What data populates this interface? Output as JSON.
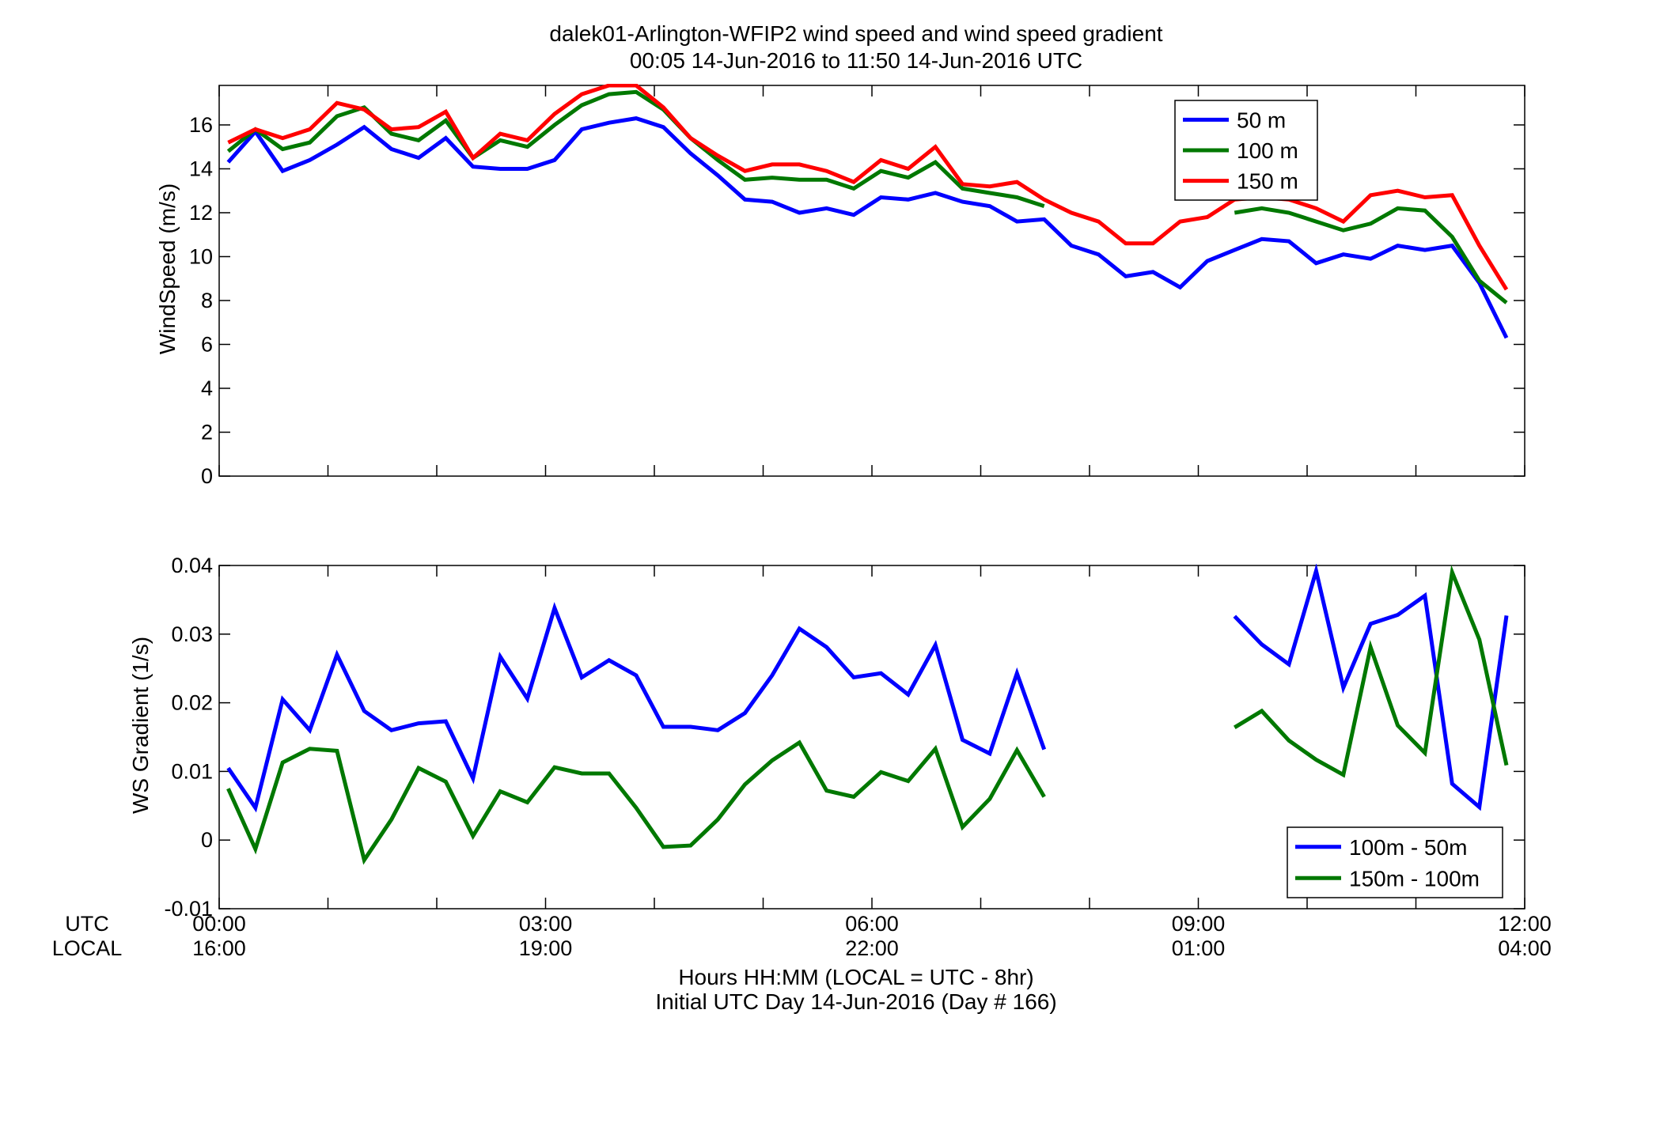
{
  "figure": {
    "title_line1": "dalek01-Arlington-WFIP2  wind speed and wind speed gradient",
    "title_line2": "00:05 14-Jun-2016 to 11:50 14-Jun-2016  UTC",
    "xlabel_line1": "Hours HH:MM  (LOCAL = UTC - 8hr)",
    "xlabel_line2": "Initial UTC Day 14-Jun-2016 (Day # 166)",
    "row_label_utc": "UTC",
    "row_label_local": "LOCAL",
    "x_ticks_utc": [
      "00:00",
      "03:00",
      "06:00",
      "09:00",
      "12:00"
    ],
    "x_ticks_local": [
      "16:00",
      "19:00",
      "22:00",
      "01:00",
      "04:00"
    ]
  },
  "chart_data": [
    {
      "type": "line",
      "ylabel": "WindSpeed (m/s)",
      "xlim": [
        0,
        12
      ],
      "ylim": [
        0,
        17.8
      ],
      "yticks": [
        0,
        2,
        4,
        6,
        8,
        10,
        12,
        14,
        16
      ],
      "grid": false,
      "legend_position": "top-right",
      "series": [
        {
          "name": "50 m",
          "color": "#0000ff",
          "points": [
            [
              0.083,
              14.3
            ],
            [
              0.333,
              15.7
            ],
            [
              0.583,
              13.9
            ],
            [
              0.833,
              14.4
            ],
            [
              1.083,
              15.1
            ],
            [
              1.333,
              15.9
            ],
            [
              1.583,
              14.9
            ],
            [
              1.833,
              14.5
            ],
            [
              2.083,
              15.4
            ],
            [
              2.333,
              14.1
            ],
            [
              2.583,
              14.0
            ],
            [
              2.833,
              14.0
            ],
            [
              3.083,
              14.4
            ],
            [
              3.333,
              15.8
            ],
            [
              3.583,
              16.1
            ],
            [
              3.833,
              16.3
            ],
            [
              4.083,
              15.9
            ],
            [
              4.333,
              14.7
            ],
            [
              4.583,
              13.7
            ],
            [
              4.833,
              12.6
            ],
            [
              5.083,
              12.5
            ],
            [
              5.333,
              12.0
            ],
            [
              5.583,
              12.2
            ],
            [
              5.833,
              11.9
            ],
            [
              6.083,
              12.7
            ],
            [
              6.333,
              12.6
            ],
            [
              6.583,
              12.9
            ],
            [
              6.833,
              12.5
            ],
            [
              7.083,
              12.3
            ],
            [
              7.333,
              11.6
            ],
            [
              7.583,
              11.7
            ],
            [
              7.833,
              10.5
            ],
            [
              8.083,
              10.1
            ],
            [
              8.333,
              9.1
            ],
            [
              8.583,
              9.3
            ],
            [
              8.833,
              8.6
            ],
            [
              9.083,
              9.8
            ],
            [
              9.333,
              10.3
            ],
            [
              9.583,
              10.8
            ],
            [
              9.833,
              10.7
            ],
            [
              10.083,
              9.7
            ],
            [
              10.333,
              10.1
            ],
            [
              10.583,
              9.9
            ],
            [
              10.833,
              10.5
            ],
            [
              11.083,
              10.3
            ],
            [
              11.333,
              10.5
            ],
            [
              11.583,
              8.8
            ],
            [
              11.833,
              6.3
            ]
          ]
        },
        {
          "name": "100 m",
          "color": "#007800",
          "points": [
            [
              0.083,
              14.8
            ],
            [
              0.333,
              15.8
            ],
            [
              0.583,
              14.9
            ],
            [
              0.833,
              15.2
            ],
            [
              1.083,
              16.4
            ],
            [
              1.333,
              16.8
            ],
            [
              1.583,
              15.6
            ],
            [
              1.833,
              15.3
            ],
            [
              2.083,
              16.2
            ],
            [
              2.333,
              14.5
            ],
            [
              2.583,
              15.3
            ],
            [
              2.833,
              15.0
            ],
            [
              3.083,
              16.0
            ],
            [
              3.333,
              16.9
            ],
            [
              3.583,
              17.4
            ],
            [
              3.833,
              17.5
            ],
            [
              4.083,
              16.7
            ],
            [
              4.333,
              15.4
            ],
            [
              4.583,
              14.4
            ],
            [
              4.833,
              13.5
            ],
            [
              5.083,
              13.6
            ],
            [
              5.333,
              13.5
            ],
            [
              5.583,
              13.5
            ],
            [
              5.833,
              13.1
            ],
            [
              6.083,
              13.9
            ],
            [
              6.333,
              13.6
            ],
            [
              6.583,
              14.3
            ],
            [
              6.833,
              13.1
            ],
            [
              7.083,
              12.9
            ],
            [
              7.333,
              12.7
            ],
            [
              7.583,
              12.3
            ],
            [
              7.833,
              null
            ],
            [
              8.083,
              null
            ],
            [
              8.333,
              null
            ],
            [
              8.583,
              null
            ],
            [
              8.833,
              null
            ],
            [
              9.083,
              null
            ],
            [
              9.333,
              12.0
            ],
            [
              9.583,
              12.2
            ],
            [
              9.833,
              12.0
            ],
            [
              10.083,
              11.6
            ],
            [
              10.333,
              11.2
            ],
            [
              10.583,
              11.5
            ],
            [
              10.833,
              12.2
            ],
            [
              11.083,
              12.1
            ],
            [
              11.333,
              10.9
            ],
            [
              11.583,
              8.9
            ],
            [
              11.833,
              7.9
            ]
          ]
        },
        {
          "name": "150 m",
          "color": "#ff0000",
          "points": [
            [
              0.083,
              15.2
            ],
            [
              0.333,
              15.8
            ],
            [
              0.583,
              15.4
            ],
            [
              0.833,
              15.8
            ],
            [
              1.083,
              17.0
            ],
            [
              1.333,
              16.7
            ],
            [
              1.583,
              15.8
            ],
            [
              1.833,
              15.9
            ],
            [
              2.083,
              16.6
            ],
            [
              2.333,
              14.5
            ],
            [
              2.583,
              15.6
            ],
            [
              2.833,
              15.3
            ],
            [
              3.083,
              16.5
            ],
            [
              3.333,
              17.4
            ],
            [
              3.583,
              17.8
            ],
            [
              3.833,
              17.8
            ],
            [
              4.083,
              16.8
            ],
            [
              4.333,
              15.4
            ],
            [
              4.583,
              14.6
            ],
            [
              4.833,
              13.9
            ],
            [
              5.083,
              14.2
            ],
            [
              5.333,
              14.2
            ],
            [
              5.583,
              13.9
            ],
            [
              5.833,
              13.4
            ],
            [
              6.083,
              14.4
            ],
            [
              6.333,
              14.0
            ],
            [
              6.583,
              15.0
            ],
            [
              6.833,
              13.3
            ],
            [
              7.083,
              13.2
            ],
            [
              7.333,
              13.4
            ],
            [
              7.583,
              12.6
            ],
            [
              7.833,
              12.0
            ],
            [
              8.083,
              11.6
            ],
            [
              8.333,
              10.6
            ],
            [
              8.583,
              10.6
            ],
            [
              8.833,
              11.6
            ],
            [
              9.083,
              11.8
            ],
            [
              9.333,
              12.6
            ],
            [
              9.583,
              12.7
            ],
            [
              9.833,
              12.6
            ],
            [
              10.083,
              12.2
            ],
            [
              10.333,
              11.6
            ],
            [
              10.583,
              12.8
            ],
            [
              10.833,
              13.0
            ],
            [
              11.083,
              12.7
            ],
            [
              11.333,
              12.8
            ],
            [
              11.583,
              10.5
            ],
            [
              11.833,
              8.5
            ]
          ]
        }
      ]
    },
    {
      "type": "line",
      "ylabel": "WS Gradient (1/s)",
      "xlim": [
        0,
        12
      ],
      "ylim": [
        -0.01,
        0.04
      ],
      "yticks": [
        -0.01,
        0,
        0.01,
        0.02,
        0.03,
        0.04
      ],
      "ytick_labels": [
        "-0.01",
        "0",
        "0.01",
        "0.02",
        "0.03",
        "0.04"
      ],
      "grid": false,
      "legend_position": "bottom-right",
      "series": [
        {
          "name": "100m - 50m",
          "color": "#0000ff",
          "points": [
            [
              0.083,
              0.0105
            ],
            [
              0.333,
              0.0047
            ],
            [
              0.583,
              0.0205
            ],
            [
              0.833,
              0.016
            ],
            [
              1.083,
              0.027
            ],
            [
              1.333,
              0.0188
            ],
            [
              1.583,
              0.016
            ],
            [
              1.833,
              0.017
            ],
            [
              2.083,
              0.0173
            ],
            [
              2.333,
              0.009
            ],
            [
              2.583,
              0.0267
            ],
            [
              2.833,
              0.0206
            ],
            [
              3.083,
              0.0338
            ],
            [
              3.333,
              0.0237
            ],
            [
              3.583,
              0.0262
            ],
            [
              3.833,
              0.024
            ],
            [
              4.083,
              0.0165
            ],
            [
              4.333,
              0.0165
            ],
            [
              4.583,
              0.016
            ],
            [
              4.833,
              0.0185
            ],
            [
              5.083,
              0.024
            ],
            [
              5.333,
              0.0308
            ],
            [
              5.583,
              0.0281
            ],
            [
              5.833,
              0.0237
            ],
            [
              6.083,
              0.0243
            ],
            [
              6.333,
              0.0212
            ],
            [
              6.583,
              0.0284
            ],
            [
              6.833,
              0.0146
            ],
            [
              7.083,
              0.0126
            ],
            [
              7.333,
              0.0243
            ],
            [
              7.583,
              0.0132
            ],
            [
              7.833,
              null
            ],
            [
              8.083,
              null
            ],
            [
              8.333,
              null
            ],
            [
              8.583,
              null
            ],
            [
              8.833,
              null
            ],
            [
              9.083,
              null
            ],
            [
              9.333,
              0.0326
            ],
            [
              9.583,
              0.0285
            ],
            [
              9.833,
              0.0256
            ],
            [
              10.083,
              0.0392
            ],
            [
              10.333,
              0.0222
            ],
            [
              10.583,
              0.0315
            ],
            [
              10.833,
              0.0328
            ],
            [
              11.083,
              0.0356
            ],
            [
              11.333,
              0.0082
            ],
            [
              11.583,
              0.0048
            ],
            [
              11.833,
              0.0327
            ]
          ]
        },
        {
          "name": "150m - 100m",
          "color": "#007800",
          "points": [
            [
              0.083,
              0.0075
            ],
            [
              0.333,
              -0.0013
            ],
            [
              0.583,
              0.0113
            ],
            [
              0.833,
              0.0133
            ],
            [
              1.083,
              0.013
            ],
            [
              1.333,
              -0.0029
            ],
            [
              1.583,
              0.003
            ],
            [
              1.833,
              0.0105
            ],
            [
              2.083,
              0.0085
            ],
            [
              2.333,
              0.0006
            ],
            [
              2.583,
              0.0071
            ],
            [
              2.833,
              0.0055
            ],
            [
              3.083,
              0.0106
            ],
            [
              3.333,
              0.0097
            ],
            [
              3.583,
              0.0097
            ],
            [
              3.833,
              0.0047
            ],
            [
              4.083,
              -0.001
            ],
            [
              4.333,
              -0.0008
            ],
            [
              4.583,
              0.003
            ],
            [
              4.833,
              0.0081
            ],
            [
              5.083,
              0.0116
            ],
            [
              5.333,
              0.0142
            ],
            [
              5.583,
              0.0072
            ],
            [
              5.833,
              0.0063
            ],
            [
              6.083,
              0.0099
            ],
            [
              6.333,
              0.0086
            ],
            [
              6.583,
              0.0133
            ],
            [
              6.833,
              0.0019
            ],
            [
              7.083,
              0.006
            ],
            [
              7.333,
              0.0131
            ],
            [
              7.583,
              0.0063
            ],
            [
              7.833,
              null
            ],
            [
              8.083,
              null
            ],
            [
              8.333,
              null
            ],
            [
              8.583,
              null
            ],
            [
              8.833,
              null
            ],
            [
              9.083,
              null
            ],
            [
              9.333,
              0.0164
            ],
            [
              9.583,
              0.0188
            ],
            [
              9.833,
              0.0145
            ],
            [
              10.083,
              0.0117
            ],
            [
              10.333,
              0.0095
            ],
            [
              10.583,
              0.0281
            ],
            [
              10.833,
              0.0167
            ],
            [
              11.083,
              0.0127
            ],
            [
              11.333,
              0.039
            ],
            [
              11.583,
              0.0292
            ],
            [
              11.833,
              0.0109
            ]
          ]
        }
      ]
    }
  ]
}
